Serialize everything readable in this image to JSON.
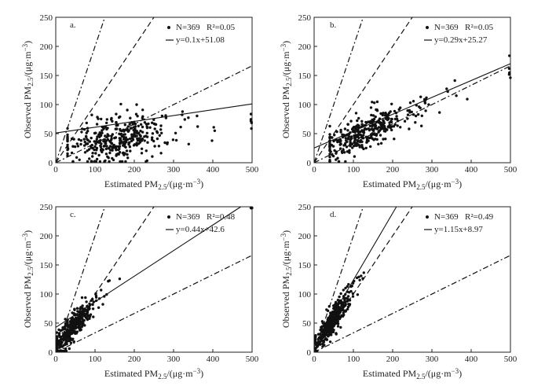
{
  "chart_data": [
    {
      "type": "scatter",
      "panel_label": "a.",
      "xlabel": "Estimated PM2.5/(μg·m⁻³)",
      "ylabel": "Observed PM2.5/(μg·m⁻³)",
      "xlim": [
        0,
        500
      ],
      "ylim": [
        0,
        250
      ],
      "xticks": [
        0,
        100,
        200,
        300,
        400,
        500
      ],
      "yticks": [
        0,
        50,
        100,
        150,
        200,
        250
      ],
      "legend": {
        "n_text": "N=369",
        "r2_text": "R²=0.05",
        "fit_text": "y=0.1x+51.08"
      },
      "fit": {
        "slope": 0.1,
        "intercept": 51.08
      },
      "reference_lines": [
        {
          "name": "1:2 line",
          "slope": 2,
          "style": "dash-dot"
        },
        {
          "name": "1:1 line",
          "slope": 1,
          "style": "dashed"
        },
        {
          "name": "1:3 line",
          "slope": 0.333,
          "style": "dash-dot"
        }
      ],
      "cloud": {
        "x_mean": 160,
        "x_sd": 90,
        "x_min": 30,
        "x_max": 500,
        "slope": 0.1,
        "intercept": 18,
        "y_sd": 18,
        "n": 369,
        "seed": 11
      }
    },
    {
      "type": "scatter",
      "panel_label": "b.",
      "xlabel": "Estimated PM2.5/(μg·m⁻³)",
      "ylabel": "Observed PM2.5/(μg·m⁻³)",
      "xlim": [
        0,
        500
      ],
      "ylim": [
        0,
        250
      ],
      "xticks": [
        0,
        100,
        200,
        300,
        400,
        500
      ],
      "yticks": [
        0,
        50,
        100,
        150,
        200,
        250
      ],
      "legend": {
        "n_text": "N=369",
        "r2_text": "R²=0.05",
        "fit_text": "y=0.29x+25.27"
      },
      "fit": {
        "slope": 0.29,
        "intercept": 25.27
      },
      "reference_lines": [
        {
          "name": "1:2 line",
          "slope": 2,
          "style": "dash-dot"
        },
        {
          "name": "1:1 line",
          "slope": 1,
          "style": "dashed"
        },
        {
          "name": "1:3 line",
          "slope": 0.333,
          "style": "dash-dot"
        }
      ],
      "cloud": {
        "x_mean": 130,
        "x_sd": 85,
        "x_min": 40,
        "x_max": 500,
        "slope": 0.29,
        "intercept": 8,
        "y_sd": 14,
        "n": 369,
        "seed": 23
      }
    },
    {
      "type": "scatter",
      "panel_label": "c.",
      "xlabel": "Estimated PM2.5/(μg·m⁻³)",
      "ylabel": "Observed PM2.5/(μg·m⁻³)",
      "xlim": [
        0,
        500
      ],
      "ylim": [
        0,
        250
      ],
      "xticks": [
        0,
        100,
        200,
        300,
        400,
        500
      ],
      "yticks": [
        0,
        50,
        100,
        150,
        200,
        250
      ],
      "legend": {
        "n_text": "N=369",
        "r2_text": "R²=0.48",
        "fit_text": "y=0.44x+42.6"
      },
      "fit": {
        "slope": 0.44,
        "intercept": 42.6
      },
      "reference_lines": [
        {
          "name": "1:2 line",
          "slope": 2,
          "style": "dash-dot"
        },
        {
          "name": "1:1 line",
          "slope": 1,
          "style": "dashed"
        },
        {
          "name": "1:3 line",
          "slope": 0.333,
          "style": "dash-dot"
        }
      ],
      "cloud": {
        "x_mean": 45,
        "x_sd": 40,
        "x_min": 3,
        "x_max": 500,
        "slope": 0.75,
        "intercept": 5,
        "y_sd": 11,
        "n": 369,
        "seed": 37
      }
    },
    {
      "type": "scatter",
      "panel_label": "d.",
      "xlabel": "Estimated PM2.5/(μg·m⁻³)",
      "ylabel": "Observed PM2.5/(μg·m⁻³)",
      "xlim": [
        0,
        500
      ],
      "ylim": [
        0,
        250
      ],
      "xticks": [
        0,
        100,
        200,
        300,
        400,
        500
      ],
      "yticks": [
        0,
        50,
        100,
        150,
        200,
        250
      ],
      "legend": {
        "n_text": "N=369",
        "r2_text": "R²=0.49",
        "fit_text": "y=1.15x+8.97"
      },
      "fit": {
        "slope": 1.15,
        "intercept": 8.97,
        "x_end": 340
      },
      "reference_lines": [
        {
          "name": "1:2 line",
          "slope": 2,
          "style": "dash-dot"
        },
        {
          "name": "1:1 line",
          "slope": 1,
          "style": "dashed"
        },
        {
          "name": "1:3 line",
          "slope": 0.333,
          "style": "dash-dot"
        }
      ],
      "cloud": {
        "x_mean": 45,
        "x_sd": 30,
        "x_min": 3,
        "x_max": 200,
        "slope": 1.0,
        "intercept": 3,
        "y_sd": 12,
        "n": 369,
        "seed": 51
      }
    }
  ]
}
